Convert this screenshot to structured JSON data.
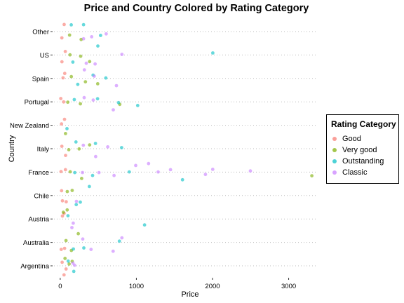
{
  "chart_data": {
    "type": "scatter",
    "title": "Price and Country Colored by Rating Category",
    "xlabel": "Price",
    "ylabel": "Country",
    "xlim": [
      -100,
      3400
    ],
    "x_ticks": [
      0,
      1000,
      2000,
      3000
    ],
    "categories": [
      "Argentina",
      "Australia",
      "Austria",
      "Chile",
      "France",
      "Italy",
      "New Zealand",
      "Portugal",
      "Spain",
      "US",
      "Other"
    ],
    "grid": "horizontal dotted",
    "legend": {
      "title": "Rating Category",
      "placement": "right",
      "entries": [
        {
          "name": "Good",
          "color": "#F8766D"
        },
        {
          "name": "Very good",
          "color": "#7CAE00"
        },
        {
          "name": "Outstanding",
          "color": "#00BFC4"
        },
        {
          "name": "Classic",
          "color": "#C77CFF"
        }
      ]
    },
    "series": [
      {
        "name": "Good",
        "color": "#F8766D",
        "points": [
          {
            "country": "Argentina",
            "price": 20
          },
          {
            "country": "Argentina",
            "price": 45
          },
          {
            "country": "Argentina",
            "price": 70
          },
          {
            "country": "Australia",
            "price": 25
          },
          {
            "country": "Australia",
            "price": 50
          },
          {
            "country": "Austria",
            "price": 20
          },
          {
            "country": "Austria",
            "price": 40
          },
          {
            "country": "Chile",
            "price": 15
          },
          {
            "country": "Chile",
            "price": 40
          },
          {
            "country": "Chile",
            "price": 65
          },
          {
            "country": "France",
            "price": 25
          },
          {
            "country": "France",
            "price": 60
          },
          {
            "country": "Italy",
            "price": 30
          },
          {
            "country": "Italy",
            "price": 55
          },
          {
            "country": "New Zealand",
            "price": 20
          },
          {
            "country": "New Zealand",
            "price": 45
          },
          {
            "country": "Portugal",
            "price": 20
          },
          {
            "country": "Portugal",
            "price": 50
          },
          {
            "country": "Spain",
            "price": 20
          },
          {
            "country": "Spain",
            "price": 50
          },
          {
            "country": "US",
            "price": 25
          },
          {
            "country": "US",
            "price": 55
          },
          {
            "country": "Other",
            "price": 20
          },
          {
            "country": "Other",
            "price": 45
          }
        ]
      },
      {
        "name": "Very good",
        "color": "#7CAE00",
        "points": [
          {
            "country": "Argentina",
            "price": 60
          },
          {
            "country": "Argentina",
            "price": 110
          },
          {
            "country": "Argentina",
            "price": 150
          },
          {
            "country": "Australia",
            "price": 80
          },
          {
            "country": "Australia",
            "price": 150
          },
          {
            "country": "Australia",
            "price": 240
          },
          {
            "country": "Austria",
            "price": 50
          },
          {
            "country": "Austria",
            "price": 85
          },
          {
            "country": "Chile",
            "price": 100
          },
          {
            "country": "Chile",
            "price": 160
          },
          {
            "country": "France",
            "price": 120
          },
          {
            "country": "France",
            "price": 280
          },
          {
            "country": "France",
            "price": 3300
          },
          {
            "country": "Italy",
            "price": 130
          },
          {
            "country": "Italy",
            "price": 250
          },
          {
            "country": "Italy",
            "price": 380
          },
          {
            "country": "New Zealand",
            "price": 70
          },
          {
            "country": "Portugal",
            "price": 110
          },
          {
            "country": "Portugal",
            "price": 250
          },
          {
            "country": "Portugal",
            "price": 800
          },
          {
            "country": "Spain",
            "price": 140
          },
          {
            "country": "Spain",
            "price": 320
          },
          {
            "country": "Spain",
            "price": 500
          },
          {
            "country": "US",
            "price": 110
          },
          {
            "country": "US",
            "price": 280
          },
          {
            "country": "US",
            "price": 380
          },
          {
            "country": "Other",
            "price": 120
          },
          {
            "country": "Other",
            "price": 290
          }
        ]
      },
      {
        "name": "Outstanding",
        "color": "#00BFC4",
        "points": [
          {
            "country": "Argentina",
            "price": 120
          },
          {
            "country": "Argentina",
            "price": 180
          },
          {
            "country": "Australia",
            "price": 180
          },
          {
            "country": "Australia",
            "price": 320
          },
          {
            "country": "Australia",
            "price": 780
          },
          {
            "country": "Austria",
            "price": 120
          },
          {
            "country": "Austria",
            "price": 1100
          },
          {
            "country": "Chile",
            "price": 200
          },
          {
            "country": "Chile",
            "price": 260
          },
          {
            "country": "Chile",
            "price": 390
          },
          {
            "country": "France",
            "price": 200
          },
          {
            "country": "France",
            "price": 420
          },
          {
            "country": "France",
            "price": 900
          },
          {
            "country": "France",
            "price": 1600
          },
          {
            "country": "Italy",
            "price": 200
          },
          {
            "country": "Italy",
            "price": 460
          },
          {
            "country": "Italy",
            "price": 800
          },
          {
            "country": "New Zealand",
            "price": 95
          },
          {
            "country": "Portugal",
            "price": 190
          },
          {
            "country": "Portugal",
            "price": 500
          },
          {
            "country": "Portugal",
            "price": 780
          },
          {
            "country": "Portugal",
            "price": 1000
          },
          {
            "country": "Spain",
            "price": 230
          },
          {
            "country": "Spain",
            "price": 420
          },
          {
            "country": "Spain",
            "price": 600
          },
          {
            "country": "US",
            "price": 180
          },
          {
            "country": "US",
            "price": 500
          },
          {
            "country": "US",
            "price": 2000
          },
          {
            "country": "Other",
            "price": 160
          },
          {
            "country": "Other",
            "price": 320
          },
          {
            "country": "Other",
            "price": 520
          }
        ]
      },
      {
        "name": "Classic",
        "color": "#C77CFF",
        "points": [
          {
            "country": "Argentina",
            "price": 160
          },
          {
            "country": "Argentina",
            "price": 200
          },
          {
            "country": "Australia",
            "price": 280
          },
          {
            "country": "Australia",
            "price": 420
          },
          {
            "country": "Australia",
            "price": 700
          },
          {
            "country": "Australia",
            "price": 820
          },
          {
            "country": "Austria",
            "price": 150
          },
          {
            "country": "Austria",
            "price": 180
          },
          {
            "country": "Chile",
            "price": 220
          },
          {
            "country": "France",
            "price": 300
          },
          {
            "country": "France",
            "price": 500
          },
          {
            "country": "France",
            "price": 700
          },
          {
            "country": "France",
            "price": 1000
          },
          {
            "country": "France",
            "price": 1150
          },
          {
            "country": "France",
            "price": 1300
          },
          {
            "country": "France",
            "price": 1450
          },
          {
            "country": "France",
            "price": 1900
          },
          {
            "country": "France",
            "price": 2000
          },
          {
            "country": "France",
            "price": 2500
          },
          {
            "country": "Italy",
            "price": 300
          },
          {
            "country": "Italy",
            "price": 450
          },
          {
            "country": "Italy",
            "price": 620
          },
          {
            "country": "Portugal",
            "price": 300
          },
          {
            "country": "Portugal",
            "price": 450
          },
          {
            "country": "Portugal",
            "price": 700
          },
          {
            "country": "Spain",
            "price": 300
          },
          {
            "country": "Spain",
            "price": 450
          },
          {
            "country": "Spain",
            "price": 750
          },
          {
            "country": "US",
            "price": 350
          },
          {
            "country": "US",
            "price": 450
          },
          {
            "country": "US",
            "price": 800
          },
          {
            "country": "Other",
            "price": 300
          },
          {
            "country": "Other",
            "price": 420
          },
          {
            "country": "Other",
            "price": 600
          }
        ]
      }
    ]
  }
}
